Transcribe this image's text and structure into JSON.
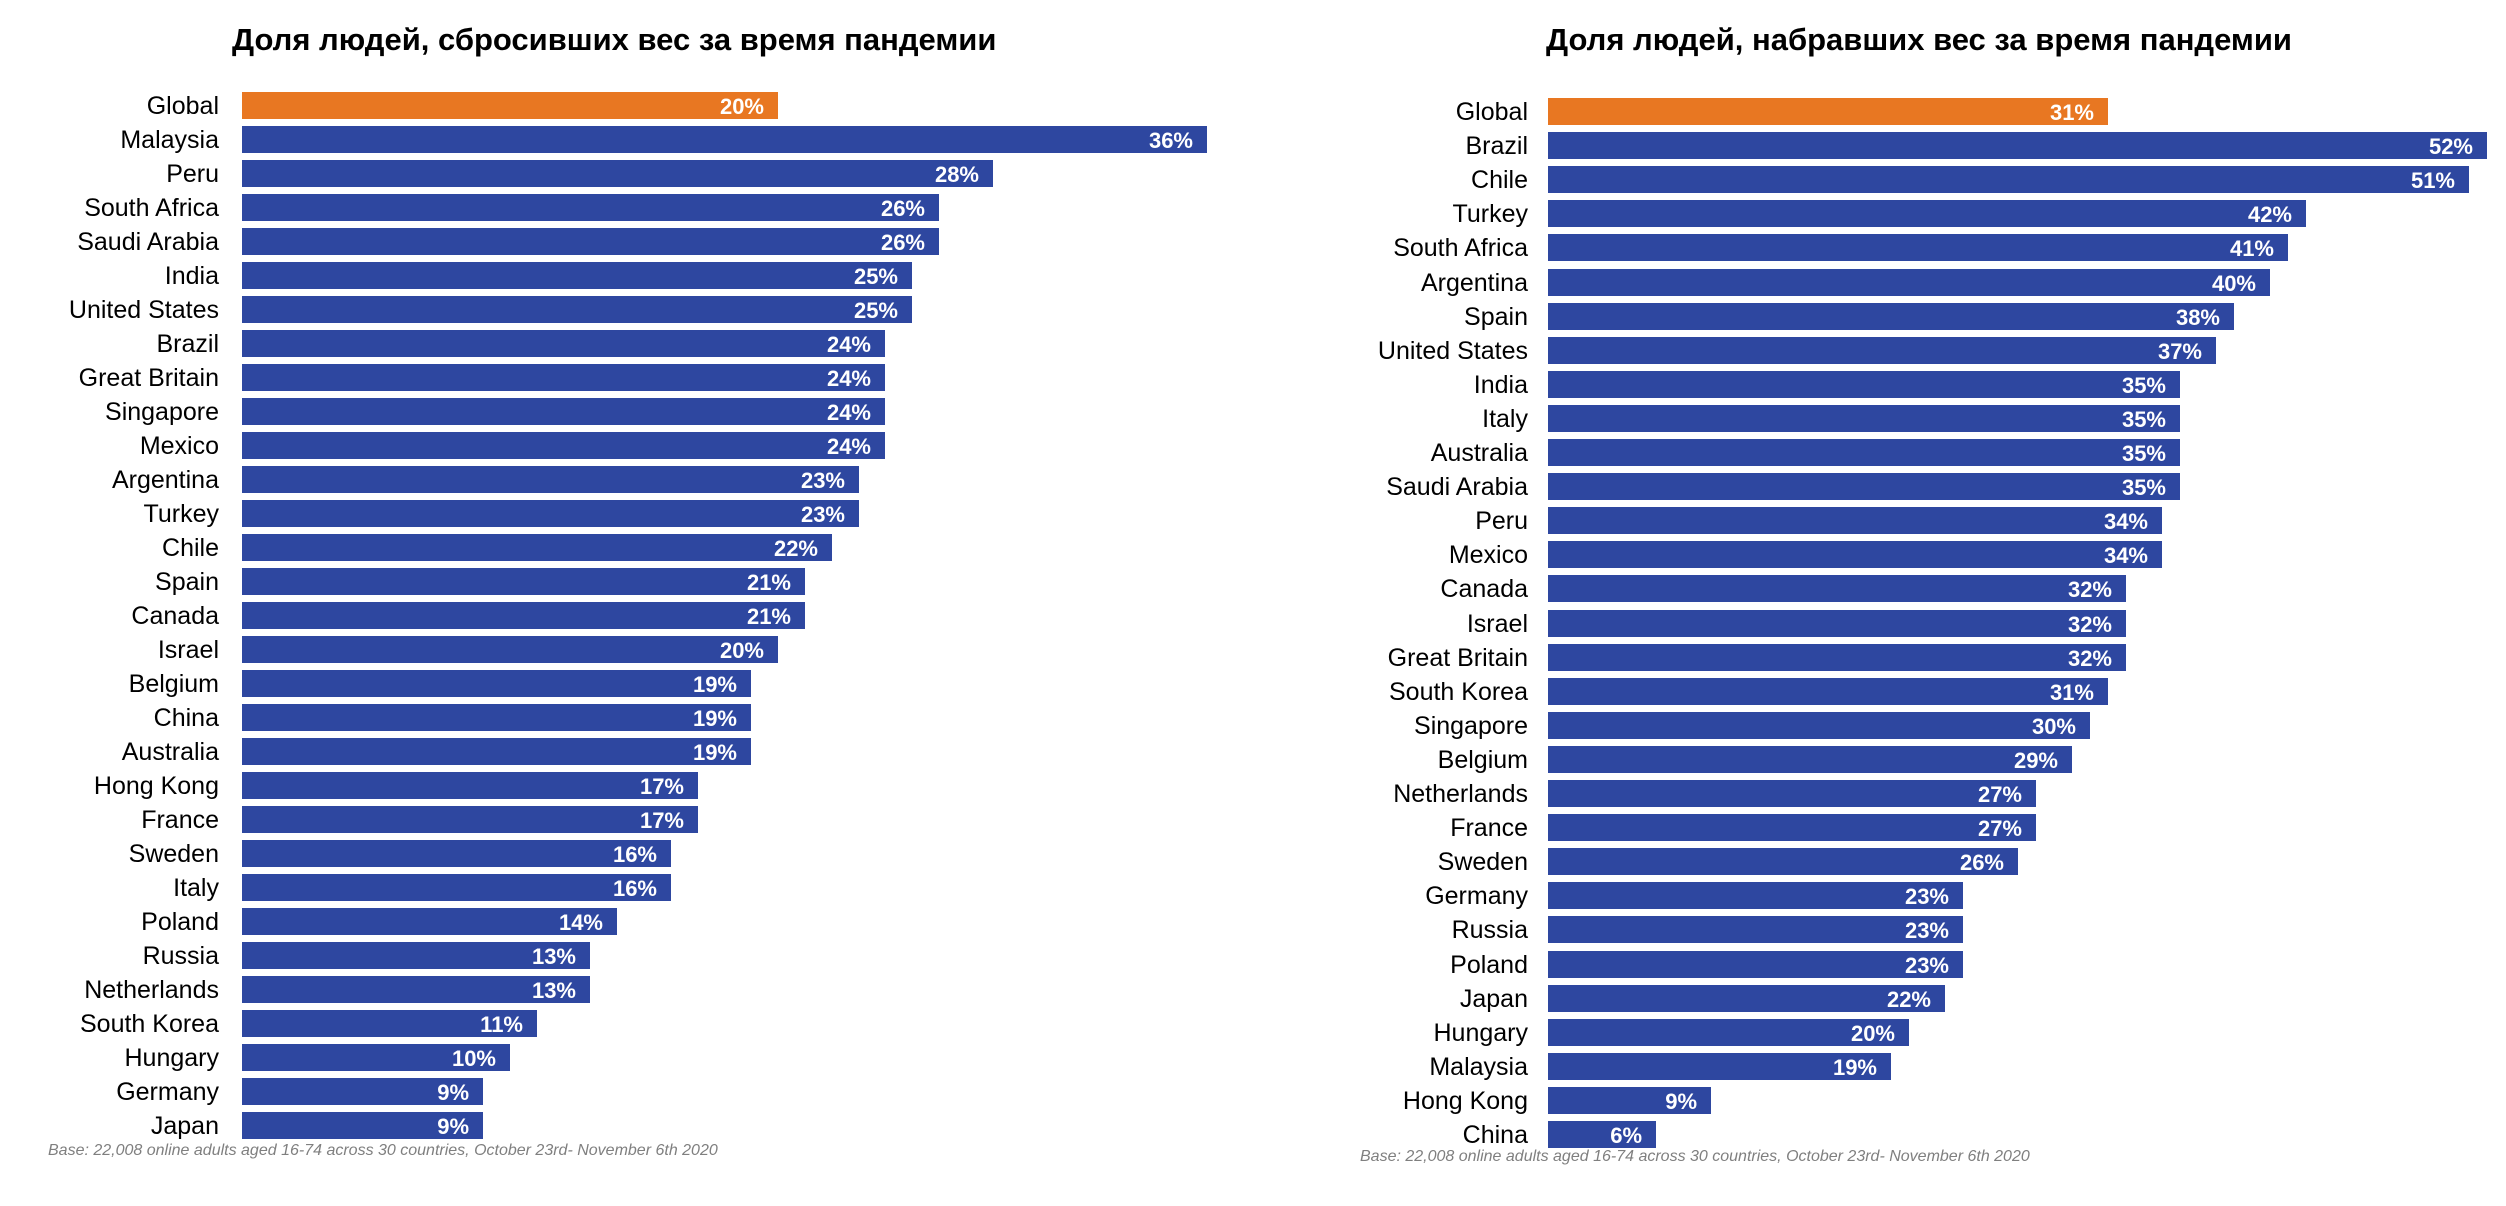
{
  "colors": {
    "highlight": "#e87722",
    "bar": "#2e47a0",
    "label": "#ffffff",
    "note": "#7f7f7f"
  },
  "left": {
    "chart_data": {
      "type": "bar",
      "orientation": "horizontal",
      "title": "Доля людей, сбросивших вес за время пандемии",
      "categories": [
        "Global",
        "Malaysia",
        "Peru",
        "South Africa",
        "Saudi Arabia",
        "India",
        "United States",
        "Brazil",
        "Great Britain",
        "Singapore",
        "Mexico",
        "Argentina",
        "Turkey",
        "Chile",
        "Spain",
        "Canada",
        "Israel",
        "Belgium",
        "China",
        "Australia",
        "Hong Kong",
        "France",
        "Sweden",
        "Italy",
        "Poland",
        "Russia",
        "Netherlands",
        "South Korea",
        "Hungary",
        "Germany",
        "Japan"
      ],
      "values": [
        20,
        36,
        28,
        26,
        26,
        25,
        25,
        24,
        24,
        24,
        24,
        23,
        23,
        22,
        21,
        21,
        20,
        19,
        19,
        19,
        17,
        17,
        16,
        16,
        14,
        13,
        13,
        11,
        10,
        9,
        9
      ],
      "labels": [
        "20%",
        "36%",
        "28%",
        "26%",
        "26%",
        "25%",
        "25%",
        "24%",
        "24%",
        "24%",
        "24%",
        "23%",
        "23%",
        "22%",
        "21%",
        "21%",
        "20%",
        "19%",
        "19%",
        "19%",
        "17%",
        "17%",
        "16%",
        "16%",
        "14%",
        "13%",
        "13%",
        "11%",
        "10%",
        "9%",
        "9%"
      ],
      "highlight_category": "Global",
      "xlim": [
        0,
        36
      ]
    },
    "note": "Base: 22,008 online adults aged 16-74 across 30 countries, October 23rd- November 6th 2020"
  },
  "right": {
    "chart_data": {
      "type": "bar",
      "orientation": "horizontal",
      "title": "Доля людей, набравших вес за время пандемии",
      "categories": [
        "Global",
        "Brazil",
        "Chile",
        "Turkey",
        "South Africa",
        "Argentina",
        "Spain",
        "United States",
        "India",
        "Italy",
        "Australia",
        "Saudi Arabia",
        "Peru",
        "Mexico",
        "Canada",
        "Israel",
        "Great Britain",
        "South Korea",
        "Singapore",
        "Belgium",
        "Netherlands",
        "France",
        "Sweden",
        "Germany",
        "Russia",
        "Poland",
        "Japan",
        "Hungary",
        "Malaysia",
        "Hong Kong",
        "China"
      ],
      "values": [
        31,
        52,
        51,
        42,
        41,
        40,
        38,
        37,
        35,
        35,
        35,
        35,
        34,
        34,
        32,
        32,
        32,
        31,
        30,
        29,
        27,
        27,
        26,
        23,
        23,
        23,
        22,
        20,
        19,
        9,
        6
      ],
      "labels": [
        "31%",
        "52%",
        "51%",
        "42%",
        "41%",
        "40%",
        "38%",
        "37%",
        "35%",
        "35%",
        "35%",
        "35%",
        "34%",
        "34%",
        "32%",
        "32%",
        "32%",
        "31%",
        "30%",
        "29%",
        "27%",
        "27%",
        "26%",
        "23%",
        "23%",
        "23%",
        "22%",
        "20%",
        "19%",
        "9%",
        "6%"
      ],
      "highlight_category": "Global",
      "xlim": [
        0,
        52
      ]
    },
    "note": "Base: 22,008 online adults aged 16-74 across 30 countries, October 23rd- November 6th 2020"
  }
}
